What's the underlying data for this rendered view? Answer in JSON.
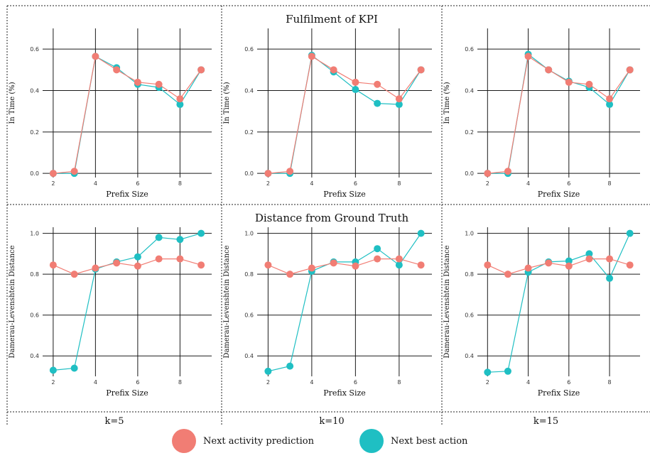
{
  "colors": {
    "nap": "#F17D74",
    "nba": "#1FBFC3"
  },
  "legend": {
    "nap_label": "Next activity prediction",
    "nba_label": "Next best action"
  },
  "rows": [
    {
      "strip_label": "Fulfilment of KPI"
    },
    {
      "strip_label": "Distance from Ground Truth"
    }
  ],
  "columns": [
    {
      "label": "k=5"
    },
    {
      "label": "k=10"
    },
    {
      "label": "k=15"
    }
  ],
  "chart_data": [
    {
      "type": "line",
      "row": 0,
      "col": 0,
      "facet": "k=5",
      "xlabel": "Prefix Size",
      "ylabel": "In Time (%)",
      "x": [
        2,
        3,
        4,
        5,
        6,
        7,
        8,
        9
      ],
      "xticks": [
        2,
        4,
        6,
        8
      ],
      "yticks": [
        0.0,
        0.2,
        0.4,
        0.6
      ],
      "xlim": [
        1.5,
        9.5
      ],
      "ylim": [
        -0.02,
        0.7
      ],
      "series": [
        {
          "name": "Next activity prediction",
          "values": [
            0.0,
            0.01,
            0.565,
            0.5,
            0.44,
            0.43,
            0.36,
            0.5
          ]
        },
        {
          "name": "Next best action",
          "values": [
            0.0,
            0.0,
            0.565,
            0.51,
            0.43,
            0.415,
            0.333,
            0.5
          ]
        }
      ]
    },
    {
      "type": "line",
      "row": 0,
      "col": 1,
      "facet": "k=10",
      "xlabel": "Prefix Size",
      "ylabel": "In Time (%)",
      "x": [
        2,
        3,
        4,
        5,
        6,
        7,
        8,
        9
      ],
      "xticks": [
        2,
        4,
        6,
        8
      ],
      "yticks": [
        0.0,
        0.2,
        0.4,
        0.6
      ],
      "xlim": [
        1.5,
        9.5
      ],
      "ylim": [
        -0.02,
        0.7
      ],
      "series": [
        {
          "name": "Next activity prediction",
          "values": [
            0.0,
            0.01,
            0.565,
            0.5,
            0.44,
            0.43,
            0.36,
            0.5
          ]
        },
        {
          "name": "Next best action",
          "values": [
            0.0,
            0.0,
            0.57,
            0.49,
            0.405,
            0.338,
            0.333,
            0.5
          ]
        }
      ]
    },
    {
      "type": "line",
      "row": 0,
      "col": 2,
      "facet": "k=15",
      "xlabel": "Prefix Size",
      "ylabel": "In Time (%)",
      "x": [
        2,
        3,
        4,
        5,
        6,
        7,
        8,
        9
      ],
      "xticks": [
        2,
        4,
        6,
        8
      ],
      "yticks": [
        0.0,
        0.2,
        0.4,
        0.6
      ],
      "xlim": [
        1.5,
        9.5
      ],
      "ylim": [
        -0.02,
        0.7
      ],
      "series": [
        {
          "name": "Next activity prediction",
          "values": [
            0.0,
            0.01,
            0.565,
            0.5,
            0.44,
            0.43,
            0.36,
            0.5
          ]
        },
        {
          "name": "Next best action",
          "values": [
            0.0,
            0.0,
            0.575,
            0.5,
            0.445,
            0.415,
            0.333,
            0.5
          ]
        }
      ]
    },
    {
      "type": "line",
      "row": 1,
      "col": 0,
      "facet": "k=5",
      "xlabel": "Prefix Size",
      "ylabel": "Damerau-Levenshtein Distance",
      "x": [
        2,
        3,
        4,
        5,
        6,
        7,
        8,
        9
      ],
      "xticks": [
        2,
        4,
        6,
        8
      ],
      "yticks": [
        0.4,
        0.6,
        0.8,
        1.0
      ],
      "xlim": [
        1.5,
        9.5
      ],
      "ylim": [
        0.3,
        1.03
      ],
      "series": [
        {
          "name": "Next activity prediction",
          "values": [
            0.845,
            0.8,
            0.83,
            0.855,
            0.84,
            0.875,
            0.875,
            0.845
          ]
        },
        {
          "name": "Next best action",
          "values": [
            0.33,
            0.34,
            0.825,
            0.86,
            0.885,
            0.98,
            0.97,
            1.0
          ]
        }
      ]
    },
    {
      "type": "line",
      "row": 1,
      "col": 1,
      "facet": "k=10",
      "xlabel": "Prefix Size",
      "ylabel": "Damerau-Levenshtein Distance",
      "x": [
        2,
        3,
        4,
        5,
        6,
        7,
        8,
        9
      ],
      "xticks": [
        2,
        4,
        6,
        8
      ],
      "yticks": [
        0.4,
        0.6,
        0.8,
        1.0
      ],
      "xlim": [
        1.5,
        9.5
      ],
      "ylim": [
        0.3,
        1.03
      ],
      "series": [
        {
          "name": "Next activity prediction",
          "values": [
            0.845,
            0.8,
            0.83,
            0.855,
            0.84,
            0.875,
            0.875,
            0.845
          ]
        },
        {
          "name": "Next best action",
          "values": [
            0.325,
            0.35,
            0.815,
            0.86,
            0.86,
            0.925,
            0.845,
            1.0
          ]
        }
      ]
    },
    {
      "type": "line",
      "row": 1,
      "col": 2,
      "facet": "k=15",
      "xlabel": "Prefix Size",
      "ylabel": "Damerau-Levenshtein Distance",
      "x": [
        2,
        3,
        4,
        5,
        6,
        7,
        8,
        9
      ],
      "xticks": [
        2,
        4,
        6,
        8
      ],
      "yticks": [
        0.4,
        0.6,
        0.8,
        1.0
      ],
      "xlim": [
        1.5,
        9.5
      ],
      "ylim": [
        0.3,
        1.03
      ],
      "series": [
        {
          "name": "Next activity prediction",
          "values": [
            0.845,
            0.8,
            0.83,
            0.855,
            0.84,
            0.875,
            0.875,
            0.845
          ]
        },
        {
          "name": "Next best action",
          "values": [
            0.32,
            0.325,
            0.81,
            0.86,
            0.865,
            0.9,
            0.78,
            1.0
          ]
        }
      ]
    }
  ]
}
